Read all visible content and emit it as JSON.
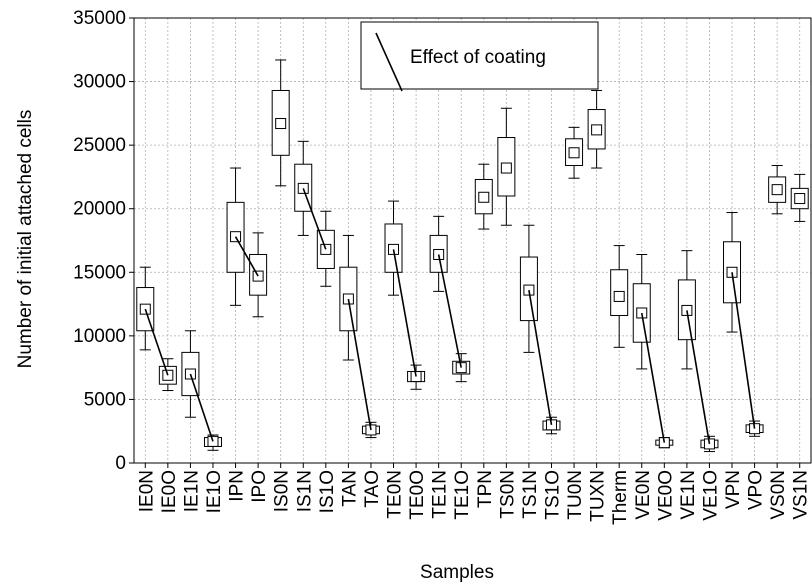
{
  "chart_data": {
    "type": "box",
    "xlabel": "Samples",
    "ylabel": "Number of initial attached cells",
    "ylim": [
      0,
      35000
    ],
    "yticks": [
      0,
      5000,
      10000,
      15000,
      20000,
      25000,
      30000,
      35000
    ],
    "grid": true,
    "legend": {
      "text": "Effect of coating",
      "placement": "top-center"
    },
    "categories": [
      "IE0N",
      "IE0O",
      "IE1N",
      "IE1O",
      "IPN",
      "IPO",
      "IS0N",
      "IS1N",
      "IS1O",
      "TAN",
      "TAO",
      "TE0N",
      "TE0O",
      "TE1N",
      "TE1O",
      "TPN",
      "TS0N",
      "TS1N",
      "TS1O",
      "TU0N",
      "TUXN",
      "Therm",
      "VE0N",
      "VE0O",
      "VE1N",
      "VE1O",
      "VPN",
      "VPO",
      "VS0N",
      "VS1N"
    ],
    "mean": [
      12100,
      6900,
      7000,
      1700,
      17800,
      14700,
      26700,
      21600,
      16800,
      12900,
      2600,
      16800,
      6800,
      16400,
      7500,
      20900,
      23200,
      13600,
      3000,
      24400,
      26200,
      13100,
      11800,
      1600,
      12000,
      1500,
      15000,
      2700,
      21500,
      20800
    ],
    "box_low": [
      10400,
      6200,
      5300,
      1300,
      15000,
      13200,
      24200,
      19800,
      15300,
      10400,
      2300,
      15000,
      6400,
      15000,
      7000,
      19600,
      21000,
      11200,
      2600,
      23400,
      24700,
      11600,
      9500,
      1400,
      9700,
      1200,
      12600,
      2400,
      20500,
      20000
    ],
    "box_high": [
      13800,
      7600,
      8700,
      2000,
      20500,
      16400,
      29300,
      23500,
      18300,
      15400,
      2900,
      18800,
      7200,
      17900,
      8000,
      22300,
      25600,
      16200,
      3300,
      25500,
      27800,
      15200,
      14100,
      1800,
      14400,
      1800,
      17400,
      3000,
      22500,
      21600
    ],
    "whisker_low": [
      8900,
      5700,
      3600,
      1000,
      12400,
      11500,
      21800,
      17900,
      13900,
      8100,
      2000,
      13200,
      5800,
      13500,
      6400,
      18400,
      18700,
      8700,
      2300,
      22400,
      23200,
      9100,
      7400,
      1200,
      7400,
      900,
      10300,
      2100,
      19600,
      19000
    ],
    "whisker_high": [
      15400,
      8200,
      10400,
      2200,
      23200,
      18100,
      31700,
      25300,
      19800,
      17900,
      3200,
      20600,
      7700,
      19400,
      8600,
      23500,
      27900,
      18700,
      3600,
      26400,
      29300,
      17100,
      16400,
      2000,
      16700,
      2100,
      19700,
      3300,
      23400,
      22700
    ],
    "coating_effect_lines": [
      {
        "from": "IE0N",
        "to": "IE0O"
      },
      {
        "from": "IE1N",
        "to": "IE1O"
      },
      {
        "from": "IPN",
        "to": "IPO"
      },
      {
        "from": "IS1N",
        "to": "IS1O"
      },
      {
        "from": "TAN",
        "to": "TAO"
      },
      {
        "from": "TE0N",
        "to": "TE0O"
      },
      {
        "from": "TE1N",
        "to": "TE1O"
      },
      {
        "from": "TS1N",
        "to": "TS1O"
      },
      {
        "from": "VE0N",
        "to": "VE0O"
      },
      {
        "from": "VE1N",
        "to": "VE1O"
      },
      {
        "from": "VPN",
        "to": "VPO"
      }
    ]
  }
}
